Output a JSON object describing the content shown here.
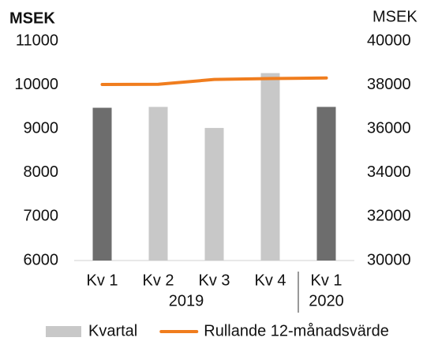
{
  "chart_data": {
    "type": "bar_line",
    "categories": [
      "Kv 1",
      "Kv 2",
      "Kv 3",
      "Kv 4",
      "Kv 1"
    ],
    "category_groups": [
      "2019",
      "2019",
      "2019",
      "2019",
      "2020"
    ],
    "ylabel": "MSEK",
    "y2label": "MSEK",
    "ylim": [
      6000,
      11000
    ],
    "yticks": [
      6000,
      7000,
      8000,
      9000,
      10000,
      11000
    ],
    "y2lim": [
      30000,
      40000
    ],
    "y2ticks": [
      30000,
      32000,
      34000,
      36000,
      38000,
      40000
    ],
    "series": [
      {
        "name": "Kvartal",
        "type": "bar",
        "color": "#c8c8c8",
        "colors": [
          "#6d6d6d",
          "#c8c8c8",
          "#c8c8c8",
          "#c8c8c8",
          "#6d6d6d"
        ],
        "values": [
          9480,
          9500,
          9020,
          10270,
          9500
        ]
      },
      {
        "name": "Rullande 12-månadsvärde",
        "type": "line",
        "axis": "y2",
        "color": "#f07d1e",
        "values": [
          38020,
          38030,
          38250,
          38290,
          38320
        ]
      }
    ]
  }
}
